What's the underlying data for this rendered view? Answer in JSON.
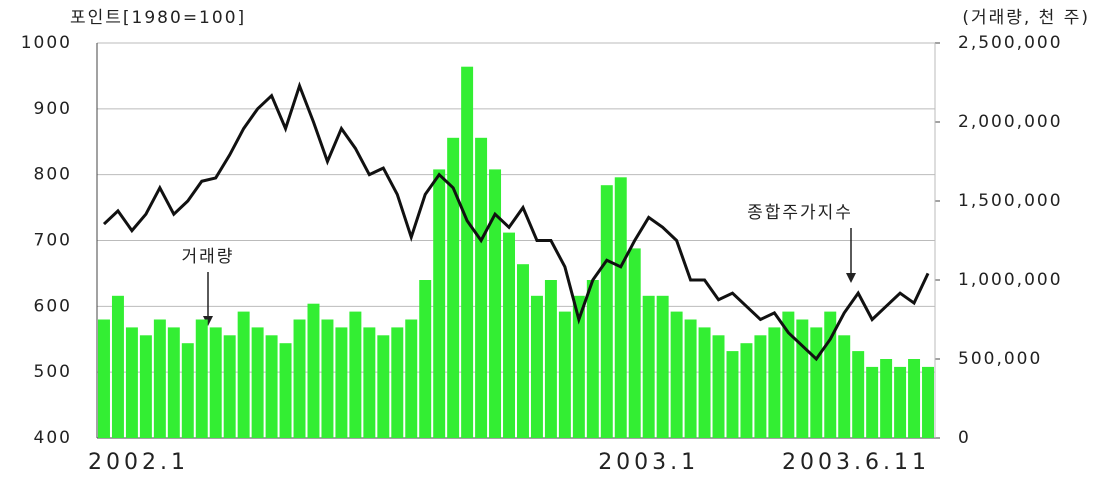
{
  "chart_data": {
    "type": "bar-line",
    "y_label": "포인트[1980=100]",
    "y2_label": "(거래량, 천 주)",
    "annotations": [
      "거래량",
      "종합주가지수"
    ],
    "categories": [
      "2002.1",
      null,
      null,
      null,
      null,
      null,
      null,
      null,
      null,
      null,
      null,
      null,
      null,
      null,
      null,
      null,
      null,
      null,
      null,
      null,
      null,
      null,
      null,
      null,
      null,
      null,
      null,
      null,
      null,
      null,
      null,
      null,
      null,
      null,
      null,
      null,
      null,
      null,
      null,
      "2003.1",
      null,
      null,
      null,
      null,
      null,
      null,
      null,
      null,
      null,
      null,
      null,
      null,
      null,
      null,
      null,
      null,
      null,
      null,
      null,
      "2003.6.11"
    ],
    "series": [
      {
        "name": "거래량",
        "type": "bar",
        "axis": "y2",
        "color": "#33ee33",
        "values": [
          750000,
          900000,
          700000,
          650000,
          750000,
          700000,
          600000,
          750000,
          700000,
          650000,
          800000,
          700000,
          650000,
          600000,
          750000,
          850000,
          750000,
          700000,
          800000,
          700000,
          650000,
          700000,
          750000,
          1000000,
          1700000,
          1900000,
          2350000,
          1900000,
          1700000,
          1300000,
          1100000,
          900000,
          1000000,
          800000,
          900000,
          1000000,
          1600000,
          1650000,
          1200000,
          900000,
          900000,
          800000,
          750000,
          700000,
          650000,
          550000,
          600000,
          650000,
          700000,
          800000,
          750000,
          700000,
          800000,
          650000,
          550000,
          450000,
          500000,
          450000,
          500000,
          450000
        ]
      },
      {
        "name": "종합주가지수",
        "type": "line",
        "axis": "y",
        "color": "#111111",
        "values": [
          725,
          745,
          715,
          740,
          780,
          740,
          760,
          790,
          795,
          830,
          870,
          900,
          920,
          870,
          935,
          880,
          820,
          870,
          840,
          800,
          810,
          770,
          705,
          770,
          800,
          780,
          730,
          700,
          740,
          720,
          750,
          700,
          700,
          660,
          580,
          640,
          670,
          660,
          700,
          735,
          720,
          700,
          640,
          640,
          610,
          620,
          600,
          580,
          590,
          560,
          540,
          520,
          550,
          590,
          620,
          580,
          600,
          620,
          605,
          650
        ]
      }
    ],
    "ylim": [
      400,
      1000
    ],
    "yticks": [
      400,
      500,
      600,
      700,
      800,
      900,
      1000
    ],
    "y2lim": [
      0,
      2500000
    ],
    "y2ticks": [
      0,
      {
        "value": 500000,
        "label": "500,000"
      },
      {
        "value": 1000000,
        "label": "1,000,000"
      },
      {
        "value": 1500000,
        "label": "1,500,000"
      },
      {
        "value": 2000000,
        "label": "2,000,000"
      },
      {
        "value": 2500000,
        "label": "2,500,000"
      }
    ],
    "grid": true
  }
}
